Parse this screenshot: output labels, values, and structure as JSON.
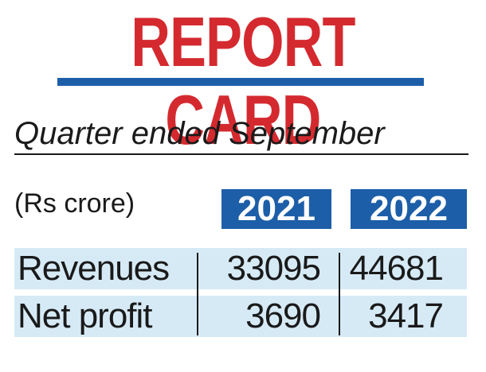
{
  "header": {
    "title": "REPORT CARD",
    "subtitle": "Quarter ended September"
  },
  "table": {
    "units": "(Rs crore)",
    "columns": [
      "2021",
      "2022"
    ],
    "rows": [
      {
        "label": "Revenues",
        "values": [
          "33095",
          "44681"
        ]
      },
      {
        "label": "Net profit",
        "values": [
          "3690",
          "3417"
        ]
      }
    ]
  },
  "colors": {
    "title_red": "#d42a2f",
    "accent_blue": "#1c5ea8",
    "row_shade": "#d6eaf6"
  }
}
